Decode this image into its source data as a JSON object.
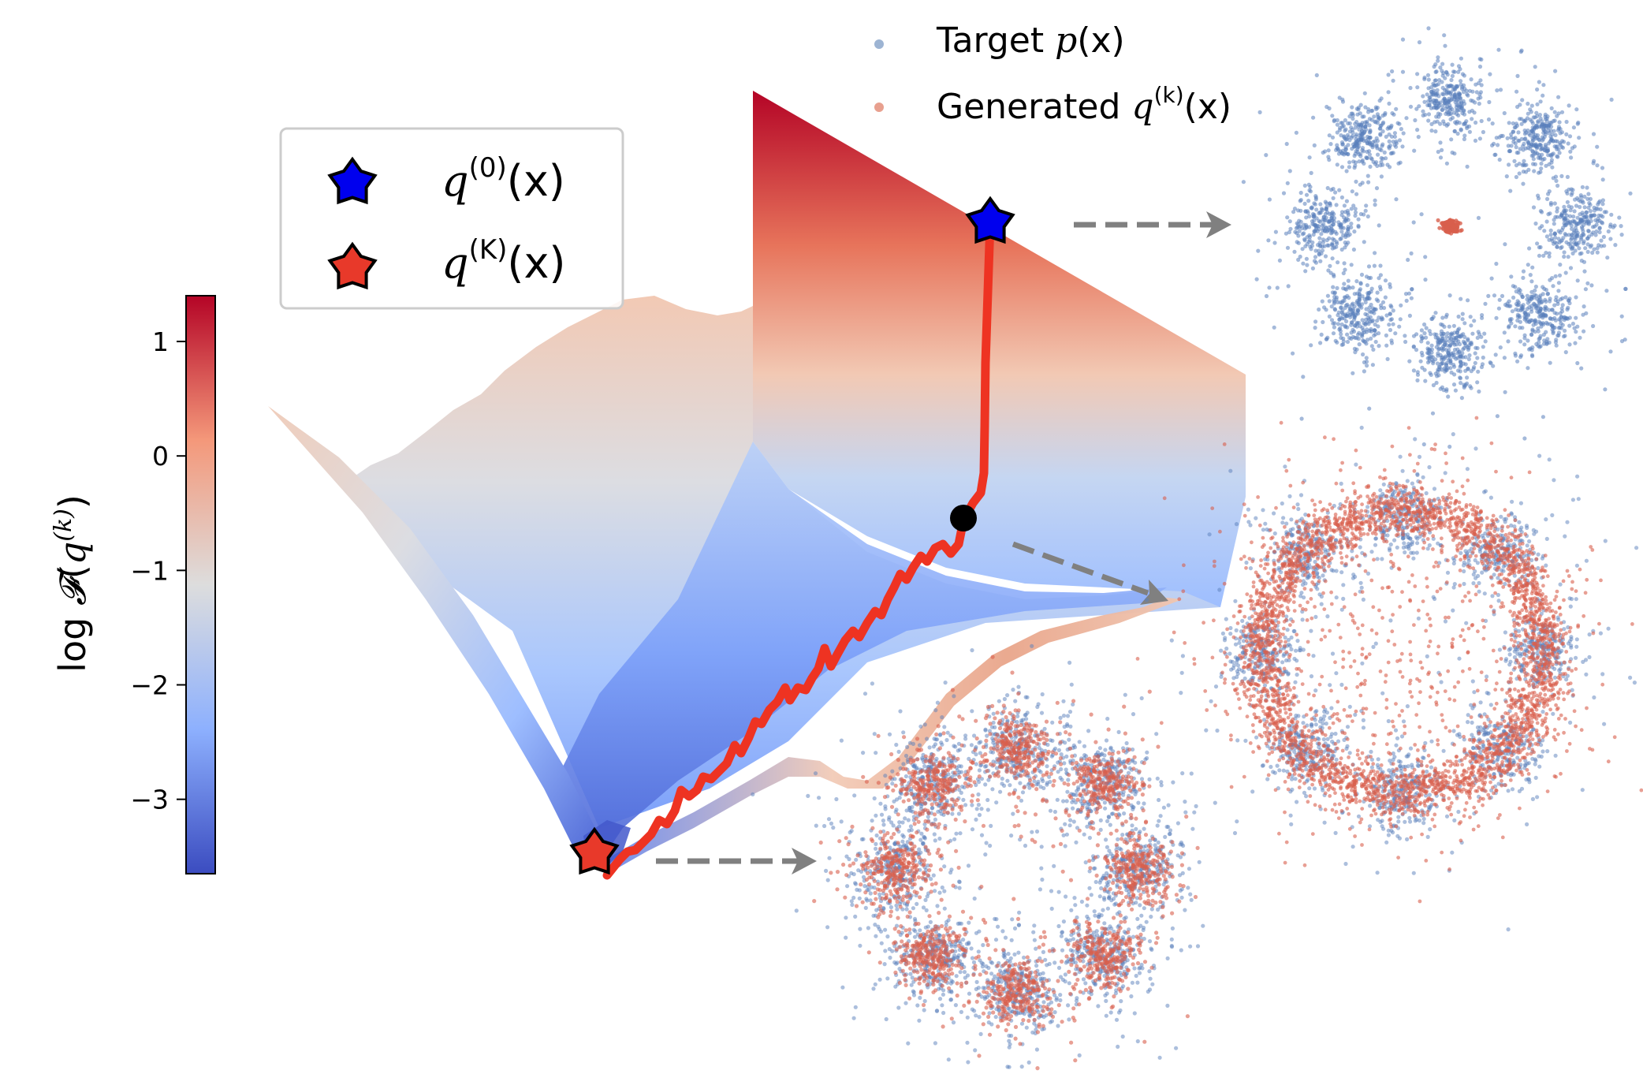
{
  "colorbar": {
    "label_prefix": "log ",
    "label_F": "𝓕",
    "label_open": "(",
    "label_q": "q",
    "label_sup": "(k)",
    "label_close": ")",
    "ticks": [
      {
        "value": 1,
        "label": "1"
      },
      {
        "value": 0,
        "label": "0"
      },
      {
        "value": -1,
        "label": "−1"
      },
      {
        "value": -2,
        "label": "−2"
      },
      {
        "value": -3,
        "label": "−3"
      }
    ],
    "range": [
      -3.65,
      1.4
    ],
    "colors": [
      "#3b4cc0",
      "#8db0fe",
      "#dddddd",
      "#f4987a",
      "#b40426"
    ]
  },
  "star_legend": {
    "items": [
      {
        "q": "q",
        "sup": "(0)",
        "rest": "(x)",
        "color": "#0000ee"
      },
      {
        "q": "q",
        "sup": "(K)",
        "rest": "(x)",
        "color": "#e8392a"
      }
    ]
  },
  "scatter_legend": {
    "items": [
      {
        "label": "Target ",
        "math": "p",
        "rest": "(x)",
        "sup": "",
        "color": "#9db4d3"
      },
      {
        "label": "Generated ",
        "math": "q",
        "rest": "(x)",
        "sup": "(k)",
        "color": "#e8a08f"
      }
    ]
  },
  "colors": {
    "target": "#5a80bb",
    "generated": "#d85f4c",
    "path": "#ee3322",
    "arrow": "#808080"
  }
}
